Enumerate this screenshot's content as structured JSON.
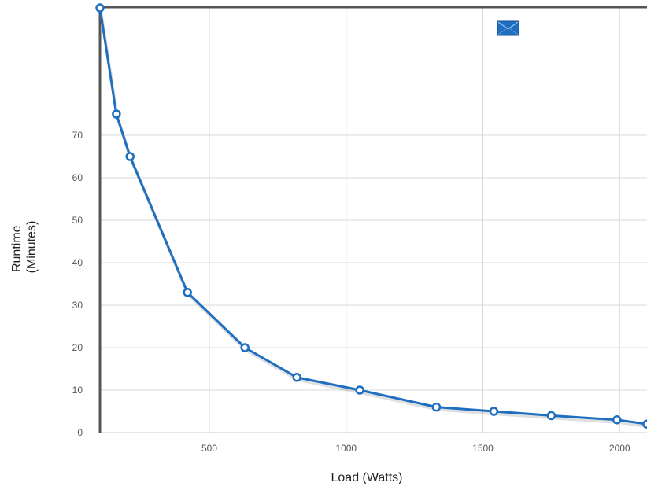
{
  "chart_data": {
    "type": "line",
    "title": "",
    "xlabel": "Load (Watts)",
    "ylabel_lines": [
      "Runtime",
      "(Minutes)"
    ],
    "xlim": [
      100,
      2100
    ],
    "ylim": [
      0,
      100
    ],
    "xticks": [
      500,
      1000,
      1500,
      2000
    ],
    "yticks": [
      0,
      10,
      20,
      30,
      40,
      50,
      60,
      70
    ],
    "grid": true,
    "legend": {
      "placement": "top-right",
      "label": ""
    },
    "series": [
      {
        "color": "#1f6fc0",
        "x": [
          100,
          160,
          210,
          420,
          630,
          820,
          1050,
          1330,
          1540,
          1750,
          1990,
          2100
        ],
        "y": [
          100,
          75,
          65,
          33,
          20,
          13,
          10,
          6,
          5,
          4,
          3,
          2
        ]
      }
    ]
  }
}
